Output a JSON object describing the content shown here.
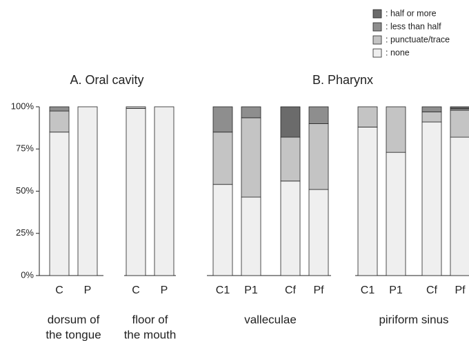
{
  "chart_data": {
    "type": "stacked_bar",
    "section_titles": [
      "A.  Oral cavity",
      "B. Pharynx"
    ],
    "group_labels": [
      [
        "dorsum of",
        "the tongue"
      ],
      [
        "floor of",
        "the mouth"
      ],
      [
        "valleculae"
      ],
      [
        "piriform sinus"
      ]
    ],
    "categories": [
      "C",
      "P",
      "C",
      "P",
      "C1",
      "P1",
      "Cf",
      "Pf",
      "C1",
      "P1",
      "Cf",
      "Pf"
    ],
    "series": [
      {
        "name": ": half or more",
        "color": "#6b6b6b",
        "values": [
          0,
          0,
          0,
          0,
          0,
          0,
          18,
          0,
          0,
          0,
          0,
          1
        ]
      },
      {
        "name": ": less than half",
        "color": "#8e8e8e",
        "values": [
          2.5,
          0,
          0,
          0,
          15,
          6.5,
          0,
          10,
          0,
          0,
          3,
          1
        ]
      },
      {
        "name": ": punctuate/trace",
        "color": "#c4c4c4",
        "values": [
          12.5,
          0,
          1,
          0,
          31,
          47,
          26,
          39,
          12,
          27,
          6,
          16
        ]
      },
      {
        "name": ": none",
        "color": "#efefef",
        "values": [
          85,
          100,
          99,
          100,
          54,
          46.5,
          56,
          51,
          88,
          73,
          91,
          82
        ]
      }
    ],
    "ylim": [
      0,
      100
    ],
    "yticks": [
      {
        "value": 0,
        "label": "0%"
      },
      {
        "value": 25,
        "label": "25%"
      },
      {
        "value": 50,
        "label": "50%"
      },
      {
        "value": 75,
        "label": "75%"
      },
      {
        "value": 100,
        "label": "100%"
      }
    ]
  }
}
